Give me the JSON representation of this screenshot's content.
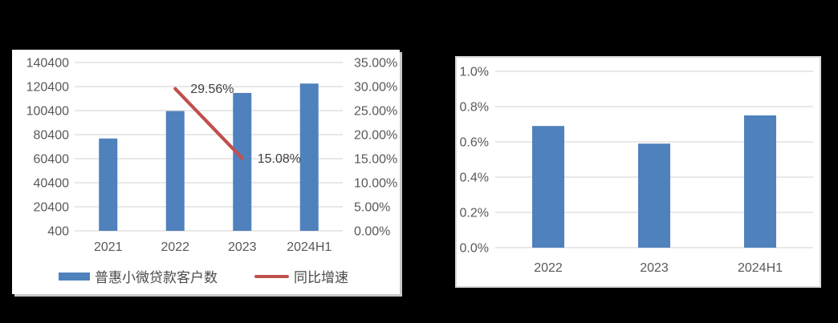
{
  "page": {
    "background": "#000000"
  },
  "colors": {
    "bar_blue": "#4F81BD",
    "line_red": "#C0504D",
    "gridline": "#D9D9D9",
    "tick_text": "#595959",
    "data_label": "#3F3F3F",
    "panel_bg": "#FFFFFF",
    "panel_border": "#D9D9D9"
  },
  "chart_data": [
    {
      "id": "inclusive-loan-customers-combo-chart",
      "type": "bar",
      "combo": "bar+line, dual axis",
      "title": "",
      "xlabel": "",
      "ylabel": "",
      "grid": true,
      "legend_position": "bottom",
      "categories": [
        "2021",
        "2022",
        "2023",
        "2024H1"
      ],
      "series": [
        {
          "name": "普惠小微贷款客户数",
          "type": "bar",
          "axis": "left",
          "values": [
            77200,
            100000,
            115100,
            122900
          ]
        },
        {
          "name": "同比增速",
          "type": "line",
          "axis": "right",
          "values": [
            null,
            29.56,
            15.08,
            null
          ],
          "point_labels": [
            null,
            "29.56%",
            "15.08%",
            null
          ]
        }
      ],
      "left_axis": {
        "tick_labels": [
          "140400",
          "120400",
          "100400",
          "80400",
          "60400",
          "40400",
          "20400",
          "400"
        ],
        "min": 400,
        "max": 140400
      },
      "right_axis": {
        "tick_labels": [
          "35.00%",
          "30.00%",
          "25.00%",
          "20.00%",
          "15.00%",
          "10.00%",
          "5.00%",
          "0.00%"
        ],
        "min": 0,
        "max": 35
      }
    },
    {
      "id": "ratio-bar-chart",
      "type": "bar",
      "title": "",
      "xlabel": "",
      "ylabel": "",
      "grid": true,
      "legend_position": "none",
      "categories": [
        "2022",
        "2023",
        "2024H1"
      ],
      "values": [
        0.69,
        0.59,
        0.75
      ],
      "unit": "%",
      "y_axis": {
        "tick_labels": [
          "1.0%",
          "0.8%",
          "0.6%",
          "0.4%",
          "0.2%",
          "0.0%"
        ],
        "min": 0,
        "max": 1.0
      }
    }
  ]
}
